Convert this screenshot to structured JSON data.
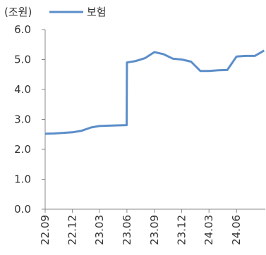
{
  "chart_data": {
    "type": "line",
    "unit_label": "(조원)",
    "legend": {
      "position": "top-left"
    },
    "series": [
      {
        "name": "보험",
        "color": "#5b8ec9",
        "x": [
          "2022-09-01",
          "2022-10-01",
          "2022-11-01",
          "2022-12-01",
          "2023-01-01",
          "2023-02-01",
          "2023-03-01",
          "2023-04-01",
          "2023-05-01",
          "2023-05-31",
          "2023-06-01",
          "2023-07-01",
          "2023-08-01",
          "2023-09-01",
          "2023-10-01",
          "2023-11-01",
          "2023-12-01",
          "2024-01-01",
          "2024-02-01",
          "2024-03-01",
          "2024-04-01",
          "2024-05-01",
          "2024-06-01",
          "2024-07-01",
          "2024-08-01",
          "2024-09-01"
        ],
        "y": [
          2.52,
          2.53,
          2.55,
          2.57,
          2.62,
          2.73,
          2.78,
          2.79,
          2.8,
          2.81,
          4.9,
          4.95,
          5.05,
          5.25,
          5.18,
          5.03,
          5.0,
          4.93,
          4.62,
          4.62,
          4.64,
          4.65,
          5.1,
          5.12,
          5.12,
          5.3
        ]
      }
    ],
    "y_axis": {
      "min": 0,
      "max": 6,
      "ticks": [
        "0.0",
        "1.0",
        "2.0",
        "3.0",
        "4.0",
        "5.0",
        "6.0"
      ]
    },
    "x_axis": {
      "min": "2022-09-01",
      "max": "2024-09-05",
      "ticks": [
        {
          "label": "22.09",
          "date": "2022-09-01"
        },
        {
          "label": "22.12",
          "date": "2022-12-01"
        },
        {
          "label": "23.03",
          "date": "2023-03-01"
        },
        {
          "label": "23.06",
          "date": "2023-06-01"
        },
        {
          "label": "23.09",
          "date": "2023-09-01"
        },
        {
          "label": "23.12",
          "date": "2023-12-01"
        },
        {
          "label": "24.03",
          "date": "2024-03-01"
        },
        {
          "label": "24.06",
          "date": "2024-06-01"
        }
      ]
    },
    "grid": false
  }
}
